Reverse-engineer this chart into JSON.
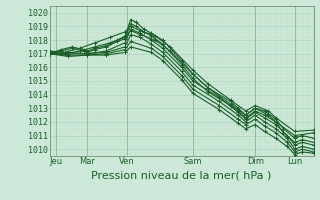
{
  "title": "Pression niveau de la mer( hPa )",
  "ylabel_values": [
    1010,
    1011,
    1012,
    1013,
    1014,
    1015,
    1016,
    1017,
    1018,
    1019,
    1020
  ],
  "ylim": [
    1009.5,
    1020.5
  ],
  "xlim": [
    0.0,
    7.0
  ],
  "xtick_positions": [
    0.18,
    1.0,
    2.05,
    3.8,
    5.45,
    6.5
  ],
  "xtick_labels": [
    "Jeu",
    "Mar",
    "Ven",
    "Sam",
    "Dim",
    "Lun"
  ],
  "vline_positions": [
    0.18,
    1.0,
    2.05,
    3.8,
    5.45,
    6.5
  ],
  "bg_color": "#cce8d8",
  "grid_color_major": "#aacbb8",
  "grid_color_minor": "#bbdac8",
  "line_color": "#1a5e28",
  "lines": [
    [
      0.0,
      1017.0,
      0.3,
      1017.3,
      0.6,
      1017.5,
      0.9,
      1017.3,
      1.0,
      1017.2,
      1.2,
      1017.4,
      1.5,
      1017.6,
      1.8,
      1018.0,
      2.0,
      1018.3,
      2.15,
      1019.5,
      2.3,
      1019.3,
      2.5,
      1018.8,
      2.7,
      1018.5,
      3.0,
      1018.0,
      3.5,
      1016.5,
      3.8,
      1015.5,
      4.2,
      1014.5,
      4.8,
      1013.5,
      5.0,
      1013.0,
      5.2,
      1012.5,
      5.45,
      1013.0,
      5.7,
      1012.8,
      6.0,
      1012.2,
      6.2,
      1011.5,
      6.5,
      1010.8,
      6.7,
      1011.0,
      7.0,
      1010.8
    ],
    [
      0.0,
      1017.0,
      0.3,
      1017.2,
      0.6,
      1017.4,
      0.9,
      1017.2,
      1.0,
      1017.1,
      1.2,
      1017.3,
      1.5,
      1017.5,
      1.8,
      1017.9,
      2.0,
      1018.1,
      2.15,
      1019.2,
      2.3,
      1019.0,
      2.5,
      1018.6,
      2.7,
      1018.3,
      3.0,
      1017.7,
      3.5,
      1016.2,
      3.8,
      1015.2,
      4.2,
      1014.2,
      4.8,
      1013.2,
      5.0,
      1012.8,
      5.2,
      1012.3,
      5.45,
      1012.8,
      5.7,
      1012.5,
      6.0,
      1012.0,
      6.2,
      1011.2,
      6.5,
      1010.5,
      6.7,
      1010.7,
      7.0,
      1010.5
    ],
    [
      0.0,
      1017.0,
      0.5,
      1017.1,
      1.0,
      1017.0,
      1.5,
      1017.2,
      2.0,
      1017.8,
      2.15,
      1018.8,
      2.4,
      1018.5,
      2.7,
      1018.0,
      3.0,
      1017.4,
      3.5,
      1016.0,
      3.8,
      1015.0,
      4.5,
      1013.8,
      5.0,
      1012.7,
      5.2,
      1012.2,
      5.45,
      1012.7,
      5.7,
      1012.3,
      6.0,
      1011.8,
      6.3,
      1011.0,
      6.5,
      1010.3,
      6.7,
      1010.5,
      7.0,
      1010.3
    ],
    [
      0.0,
      1017.0,
      0.5,
      1017.0,
      1.0,
      1017.0,
      1.5,
      1017.1,
      2.0,
      1017.5,
      2.15,
      1018.4,
      2.4,
      1018.2,
      2.7,
      1017.7,
      3.0,
      1017.1,
      3.5,
      1015.7,
      3.8,
      1014.7,
      4.5,
      1013.5,
      5.0,
      1012.5,
      5.2,
      1012.0,
      5.45,
      1012.5,
      5.7,
      1012.0,
      6.0,
      1011.5,
      6.3,
      1010.8,
      6.5,
      1010.0,
      6.7,
      1010.2,
      7.0,
      1010.0
    ],
    [
      0.0,
      1017.0,
      0.5,
      1016.9,
      1.0,
      1016.9,
      1.5,
      1017.0,
      2.0,
      1017.3,
      2.15,
      1017.9,
      2.7,
      1017.4,
      3.0,
      1016.8,
      3.5,
      1015.4,
      3.8,
      1014.4,
      4.5,
      1013.2,
      5.0,
      1012.2,
      5.2,
      1011.8,
      5.45,
      1012.2,
      5.7,
      1011.7,
      6.0,
      1011.2,
      6.3,
      1010.5,
      6.5,
      1009.8,
      6.7,
      1010.0,
      7.0,
      1009.8
    ],
    [
      0.0,
      1017.0,
      0.5,
      1016.8,
      1.0,
      1016.9,
      1.5,
      1016.9,
      2.0,
      1017.1,
      2.15,
      1017.5,
      2.7,
      1017.1,
      3.0,
      1016.5,
      3.5,
      1015.1,
      3.8,
      1014.1,
      4.5,
      1012.9,
      5.0,
      1011.9,
      5.2,
      1011.5,
      5.45,
      1011.8,
      5.7,
      1011.3,
      6.0,
      1010.8,
      6.3,
      1010.2,
      6.5,
      1009.6,
      6.7,
      1009.8,
      7.0,
      1009.7
    ],
    [
      0.0,
      1017.1,
      0.4,
      1017.0,
      0.8,
      1017.2,
      1.2,
      1017.5,
      1.6,
      1017.8,
      2.0,
      1018.2,
      2.15,
      1018.7,
      2.4,
      1018.4,
      2.8,
      1018.0,
      3.2,
      1017.2,
      3.8,
      1015.5,
      4.2,
      1014.5,
      4.8,
      1013.3,
      5.2,
      1012.5,
      5.45,
      1013.0,
      5.8,
      1012.5,
      6.0,
      1012.0,
      6.5,
      1011.0,
      7.0,
      1011.2
    ],
    [
      0.0,
      1017.2,
      0.4,
      1017.1,
      0.8,
      1017.4,
      1.2,
      1017.8,
      1.6,
      1018.2,
      2.0,
      1018.6,
      2.15,
      1019.0,
      2.4,
      1018.7,
      2.8,
      1018.3,
      3.2,
      1017.5,
      3.8,
      1015.8,
      4.2,
      1014.8,
      4.8,
      1013.6,
      5.2,
      1012.8,
      5.45,
      1013.2,
      5.8,
      1012.8,
      6.0,
      1012.3,
      6.5,
      1011.3,
      7.0,
      1011.4
    ]
  ],
  "marker": "+",
  "marker_size": 2.5,
  "line_width": 0.8,
  "title_fontsize": 8.0,
  "tick_fontsize": 6.0
}
